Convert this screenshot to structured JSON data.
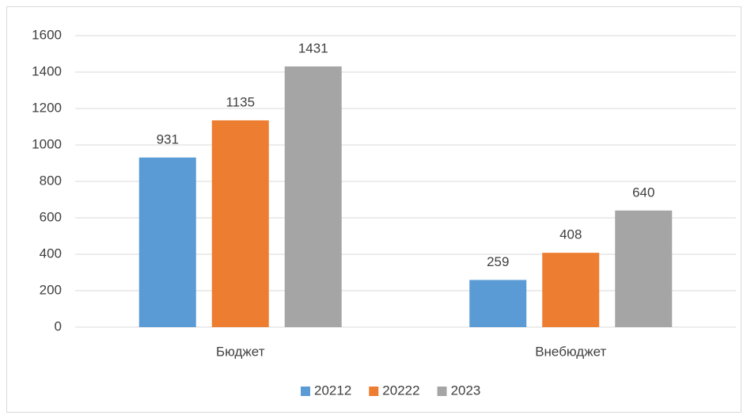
{
  "chart_data": {
    "type": "bar",
    "categories": [
      "Бюджет",
      "Внебюджет"
    ],
    "series": [
      {
        "name": "20212",
        "color": "#5b9bd5",
        "values": [
          931,
          259
        ]
      },
      {
        "name": "20222",
        "color": "#ed7d31",
        "values": [
          1135,
          408
        ]
      },
      {
        "name": "2023",
        "color": "#a5a5a5",
        "values": [
          1431,
          640
        ]
      }
    ],
    "ylim": [
      0,
      1600
    ],
    "yticks": [
      0,
      200,
      400,
      600,
      800,
      1000,
      1200,
      1400,
      1600
    ],
    "grid": true,
    "legend": "bottom"
  }
}
